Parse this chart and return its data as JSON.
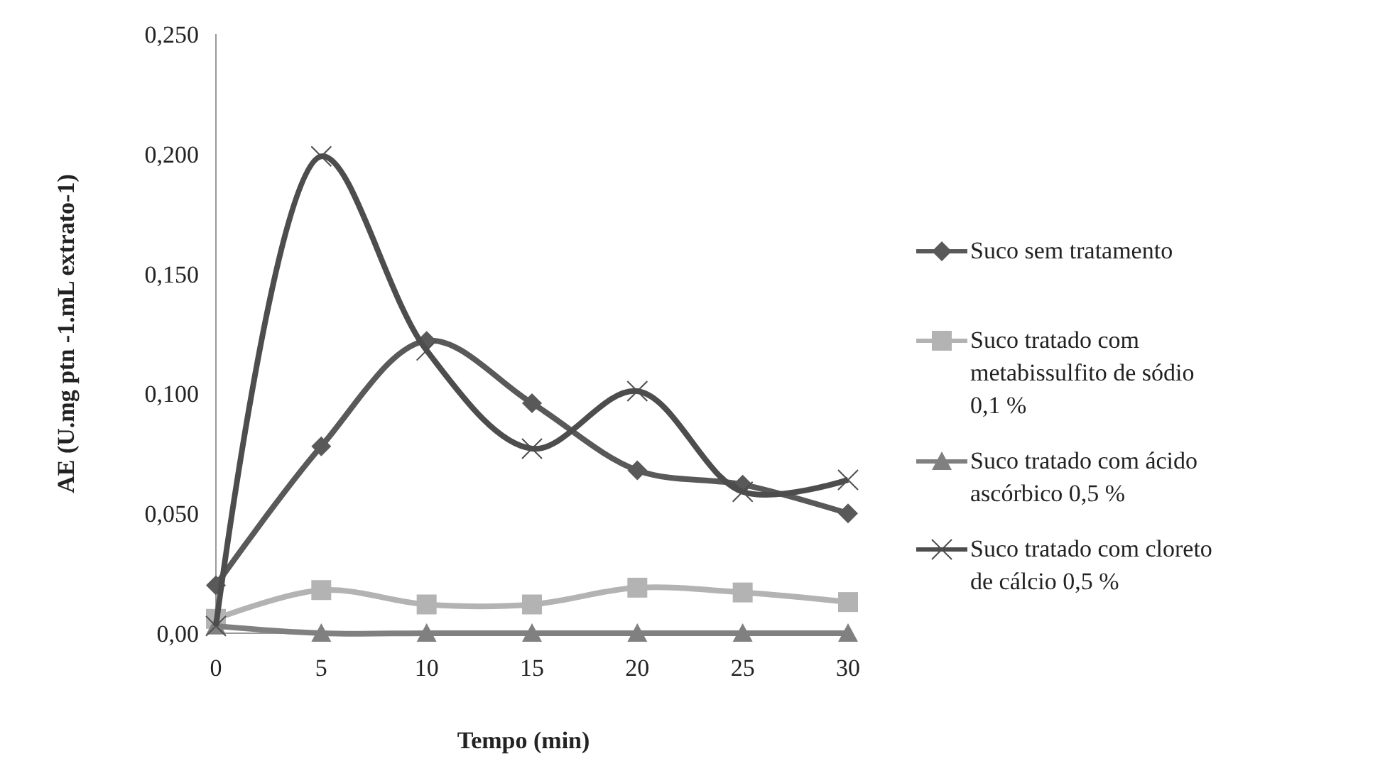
{
  "chart_data": {
    "type": "line",
    "xlabel": "Tempo (min)",
    "ylabel": "AE (U.mg ptn -1.mL extrato-1)",
    "x": [
      0,
      5,
      10,
      15,
      20,
      25,
      30
    ],
    "xlim": [
      0,
      30
    ],
    "xticks": [
      0,
      5,
      10,
      15,
      20,
      25,
      30
    ],
    "ylim": [
      0,
      0.25
    ],
    "yticks": [
      {
        "value": 0,
        "label": "0,00"
      },
      {
        "value": 0.05,
        "label": "0,050"
      },
      {
        "value": 0.1,
        "label": "0,100"
      },
      {
        "value": 0.15,
        "label": "0,150"
      },
      {
        "value": 0.2,
        "label": "0,200"
      },
      {
        "value": 0.25,
        "label": "0,250"
      }
    ],
    "grid": false,
    "legend": "right",
    "line_style": "solid",
    "series": [
      {
        "name": "Suco sem tratamento",
        "color": "#595959",
        "marker": "diamond",
        "values": [
          0.02,
          0.078,
          0.122,
          0.096,
          0.068,
          0.062,
          0.05
        ]
      },
      {
        "name": "Suco tratado com metabissulfito de sódio 0,1 %",
        "color": "#b3b3b3",
        "marker": "square",
        "values": [
          0.006,
          0.018,
          0.012,
          0.012,
          0.019,
          0.017,
          0.013
        ]
      },
      {
        "name": "Suco tratado com ácido ascórbico 0,5 %",
        "color": "#808080",
        "marker": "triangle",
        "values": [
          0.003,
          0,
          0,
          0,
          0,
          0,
          0
        ]
      },
      {
        "name": "Suco tratado com cloreto de cálcio 0,5 %",
        "color": "#4d4d4d",
        "marker": "cross",
        "values": [
          0.003,
          0.199,
          0.118,
          0.077,
          0.101,
          0.059,
          0.064
        ]
      }
    ]
  }
}
